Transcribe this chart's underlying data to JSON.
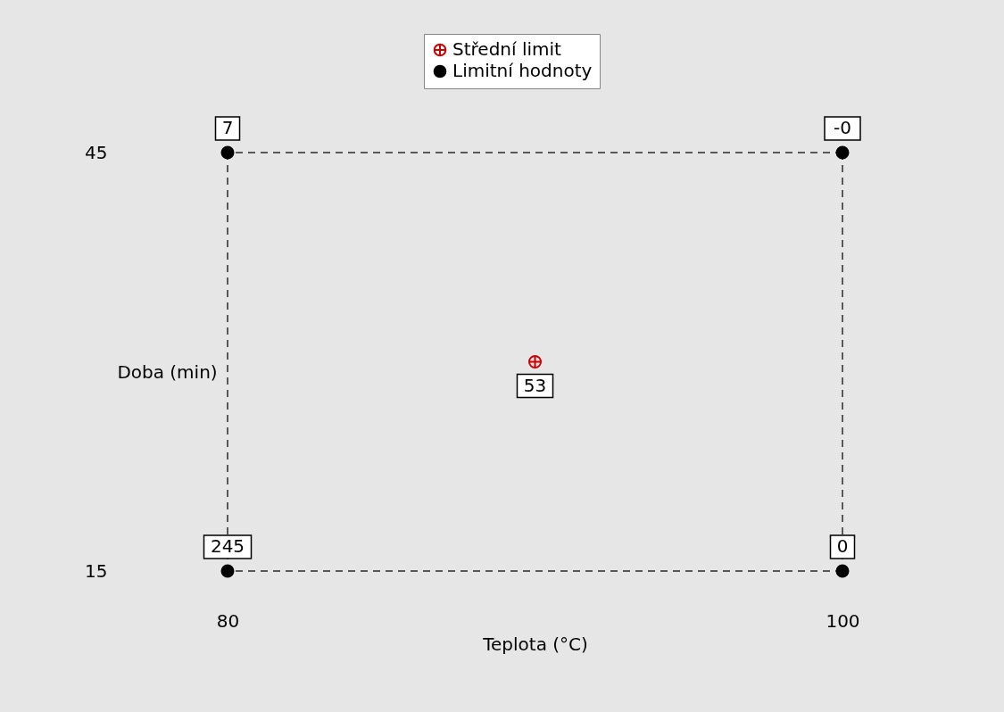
{
  "chart_data": {
    "type": "scatter",
    "xlabel": "Teplota (°C)",
    "ylabel": "Doba (min)",
    "xlim": [
      80,
      100
    ],
    "ylim": [
      15,
      45
    ],
    "xticks": [
      80,
      100
    ],
    "yticks": [
      15,
      45
    ],
    "legend": "top",
    "series": [
      {
        "name": "Střední limit",
        "x": [
          90
        ],
        "values": [
          30
        ],
        "color": "#cc0000",
        "marker": "cross"
      },
      {
        "name": "Limitní hodnoty",
        "x": [
          80,
          80,
          100,
          100
        ],
        "values": [
          15,
          45,
          15,
          45
        ],
        "color": "#000000",
        "marker": "circle"
      }
    ],
    "ref_lines": [
      {
        "axis": "y",
        "value": 15,
        "color": "#595959",
        "line_style": "dashed"
      },
      {
        "axis": "y",
        "value": 45,
        "color": "#595959",
        "line_style": "dashed"
      },
      {
        "axis": "x",
        "value": 80,
        "color": "#595959",
        "line_style": "dashed"
      },
      {
        "axis": "x",
        "value": 100,
        "color": "#595959",
        "line_style": "dashed"
      }
    ],
    "annotations": [
      {
        "text": "53",
        "x": 90,
        "y": 30
      },
      {
        "text": "245",
        "x": 80,
        "y": 15
      },
      {
        "text": "7",
        "x": 80,
        "y": 45
      },
      {
        "text": "0",
        "x": 100,
        "y": 15
      },
      {
        "text": "-0",
        "x": 100,
        "y": 45
      }
    ]
  }
}
